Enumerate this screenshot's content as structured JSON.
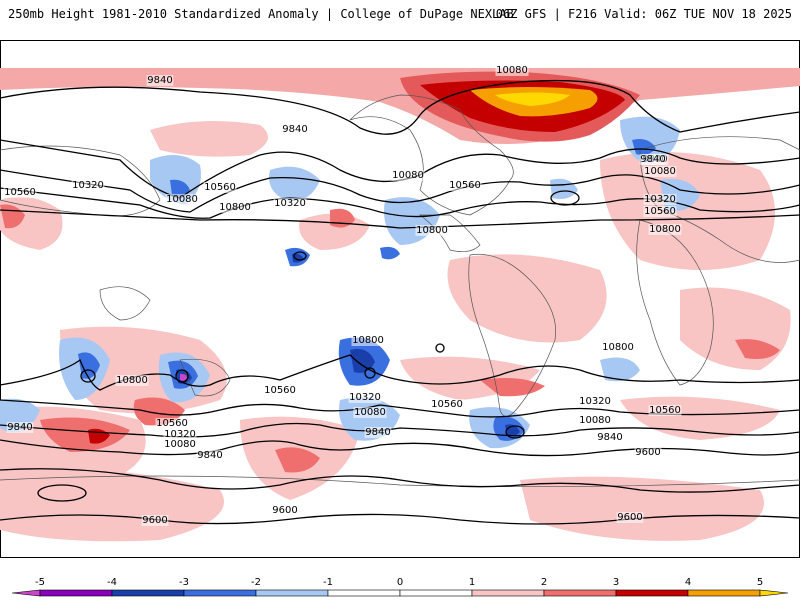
{
  "header": {
    "left_title": "250mb Height 1981-2010 Standardized Anomaly | College of DuPage NEXLAB",
    "right_title": "06Z GFS | F216 Valid: 06Z TUE NOV 18 2025"
  },
  "contour_labels": [
    {
      "text": "10080"
    },
    {
      "text": "9840"
    },
    {
      "text": "9840"
    },
    {
      "text": "9840"
    },
    {
      "text": "10320"
    },
    {
      "text": "10560"
    },
    {
      "text": "10080"
    },
    {
      "text": "10560"
    },
    {
      "text": "10800"
    },
    {
      "text": "10320"
    },
    {
      "text": "10080"
    },
    {
      "text": "10560"
    },
    {
      "text": "10800"
    },
    {
      "text": "9840"
    },
    {
      "text": "10080"
    },
    {
      "text": "10320"
    },
    {
      "text": "10560"
    },
    {
      "text": "10800"
    },
    {
      "text": "10800"
    },
    {
      "text": "10800"
    },
    {
      "text": "10800"
    },
    {
      "text": "10560"
    },
    {
      "text": "10320"
    },
    {
      "text": "10080"
    },
    {
      "text": "9840"
    },
    {
      "text": "10560"
    },
    {
      "text": "10320"
    },
    {
      "text": "10080"
    },
    {
      "text": "9840"
    },
    {
      "text": "10560"
    },
    {
      "text": "10320"
    },
    {
      "text": "10080"
    },
    {
      "text": "9840"
    },
    {
      "text": "9840"
    },
    {
      "text": "9600"
    },
    {
      "text": "9600"
    },
    {
      "text": "9600"
    },
    {
      "text": "9600"
    },
    {
      "text": "10560"
    }
  ],
  "colorbar": {
    "ticks": [
      "-5",
      "-4",
      "-3",
      "-2",
      "-1",
      "0",
      "1",
      "2",
      "3",
      "4",
      "5"
    ],
    "colors": [
      "#cc44cc",
      "#8800bb",
      "#1b3faa",
      "#3a6fe0",
      "#a8c8f4",
      "#ffffff",
      "#ffffff",
      "#f8c4c4",
      "#ef6f6f",
      "#c40000",
      "#f5a000",
      "#ffd800"
    ]
  }
}
